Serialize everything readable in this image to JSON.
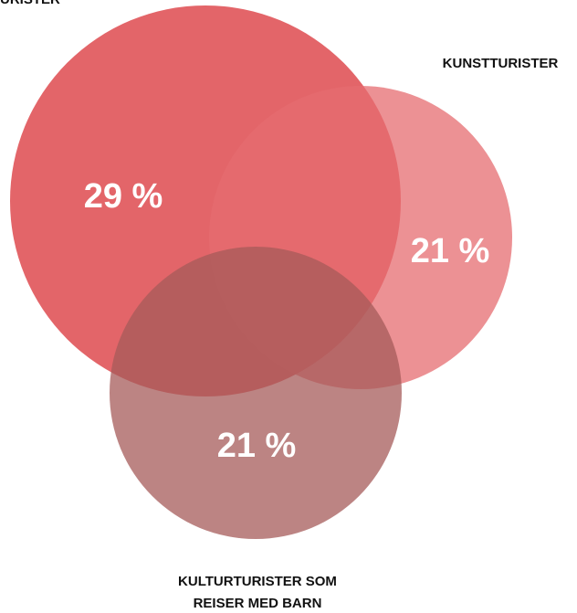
{
  "chart_data": {
    "type": "venn",
    "sets": [
      {
        "name": [
          "URISTER"
        ],
        "values": 29,
        "value_labels": "29 %",
        "color": "#e05459"
      },
      {
        "name": [
          "KUNSTTURISTER"
        ],
        "values": 21,
        "value_labels": "21 %",
        "color": "#e56c70"
      },
      {
        "name": [
          "KULTURTURISTER SOM",
          "REISER MED BARN"
        ],
        "values": 21,
        "value_labels": "21 %",
        "color": "#a65b5a"
      }
    ]
  }
}
